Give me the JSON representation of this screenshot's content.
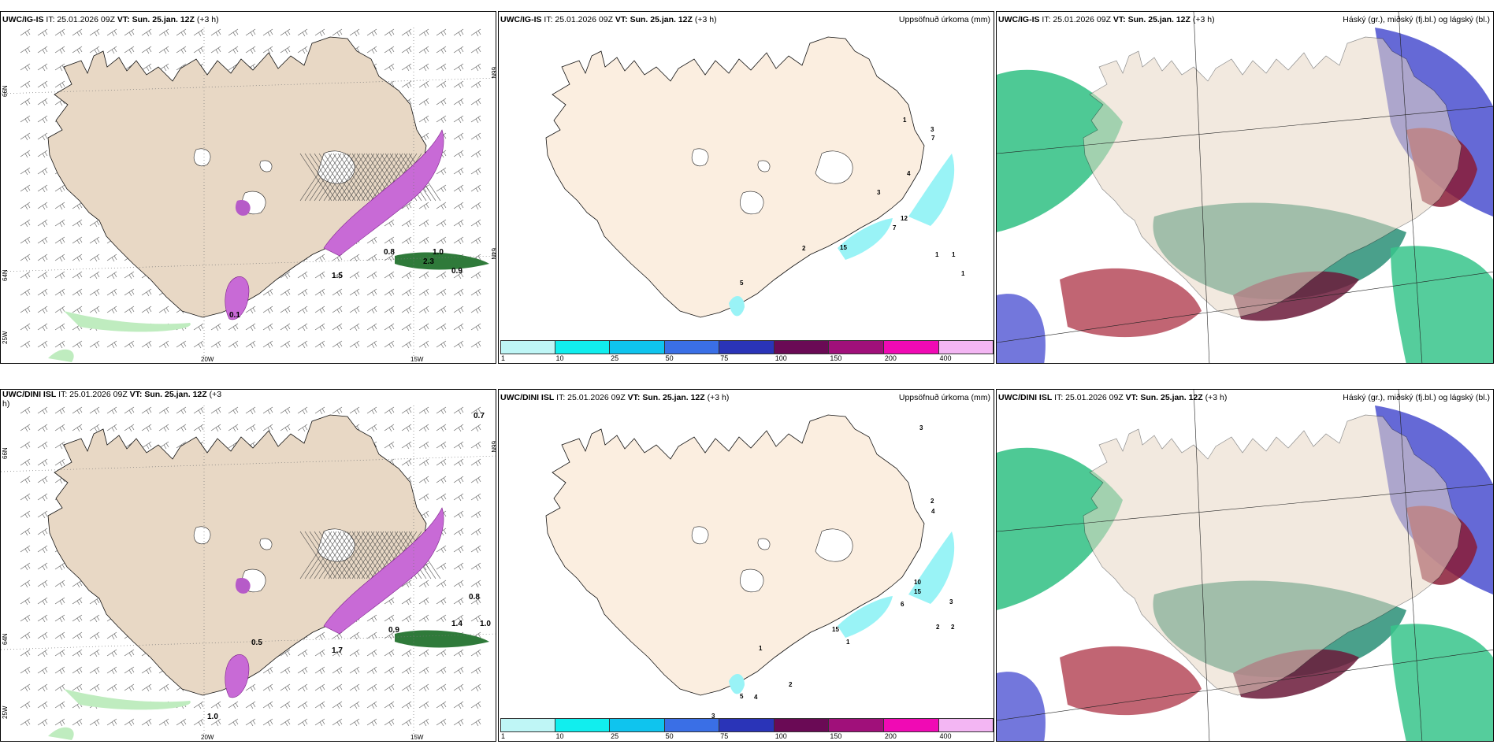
{
  "panels": {
    "igis_wind": {
      "model": "UWC/IG-IS",
      "it": " IT: 25.01.2026 09Z ",
      "vt": "VT: Sun. 25.jan. 12Z",
      "lead": " (+3 h)"
    },
    "igis_precip": {
      "model": "UWC/IG-IS",
      "it": " IT: 25.01.2026 09Z ",
      "vt": "VT: Sun. 25.jan. 12Z",
      "lead": " (+3 h)",
      "right_title": "Uppsöfnuð úrkoma (mm)"
    },
    "igis_cloud": {
      "model": "UWC/IG-IS",
      "it": " IT: 25.01.2026 09Z ",
      "vt": "VT: Sun. 25.jan. 12Z",
      "lead": " (+3 h)",
      "right_title": "Háský (gr.), miðský (fj.bl.) og lágský (bl.)"
    },
    "dini_wind": {
      "model": "UWC/DINI ISL",
      "it": " IT: 25.01.2026 09Z ",
      "vt": "VT: Sun. 25.jan. 12Z",
      "lead": " (+3",
      "lead2": "h)"
    },
    "dini_precip": {
      "model": "UWC/DINI ISL",
      "it": " IT: 25.01.2026 09Z ",
      "vt": "VT: Sun. 25.jan. 12Z",
      "lead": " (+3 h)",
      "right_title": "Uppsöfnuð úrkoma (mm)"
    },
    "dini_cloud": {
      "model": "UWC/DINI ISL",
      "it": " IT: 25.01.2026 09Z ",
      "vt": "VT: Sun. 25.jan. 12Z",
      "lead": " (+3 h)",
      "right_title": "Háský (gr.), miðský (fj.bl.) og lágský (bl.)"
    }
  },
  "grid_labels": {
    "lon_20w": "20W",
    "lon_15w": "15W",
    "lon_25w": "25W",
    "lat_66n": "66N",
    "lat_64n": "64N"
  },
  "colorbar": {
    "ticks": [
      "1",
      "10",
      "25",
      "50",
      "75",
      "100",
      "150",
      "200",
      "400"
    ],
    "colors": [
      "#bff6f6",
      "#11eeee",
      "#0fc4ee",
      "#3a6fe6",
      "#2a34b8",
      "#6a0a55",
      "#a0107a",
      "#f00ab4",
      "#f3b6f3"
    ]
  },
  "map_values": {
    "igis_wind": [
      "1.0",
      "0.9",
      "1.5",
      "0.1",
      "2.3",
      "0.8"
    ],
    "igis_precip": [
      "1",
      "3",
      "7",
      "4",
      "3",
      "12",
      "7",
      "2",
      "15",
      "1",
      "5",
      "1",
      "1"
    ],
    "dini_wind": [
      "0.7",
      "0.8",
      "1.0",
      "1.4",
      "0.9",
      "0.5",
      "1.0",
      "1.7"
    ],
    "dini_precip": [
      "3",
      "2",
      "4",
      "10",
      "15",
      "6",
      "3",
      "2",
      "2",
      "1",
      "5",
      "4",
      "3",
      "2",
      "15",
      "1"
    ]
  },
  "colors": {
    "land": "#e8d8c5",
    "land_precip": "#fbeee0",
    "coast": "#000000"
  }
}
